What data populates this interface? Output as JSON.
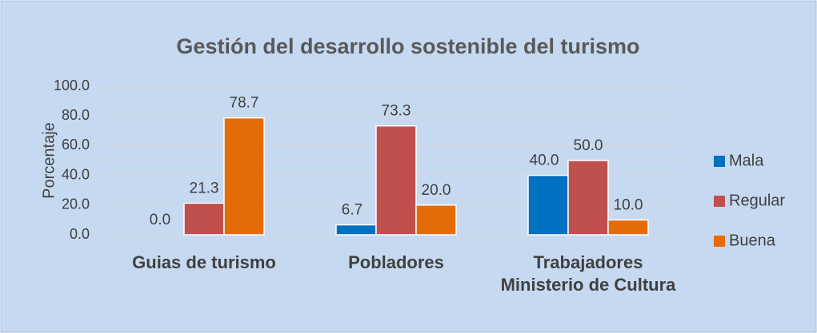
{
  "chart_data": {
    "type": "bar",
    "title": "Gestión del desarrollo sostenible del turismo",
    "y_label": "Porcentaje",
    "categories": [
      "Guias de turismo",
      "Pobladores",
      "Trabajadores Ministerio de Cultura"
    ],
    "series": [
      {
        "name": "Mala",
        "color": "#0070c0",
        "values": [
          0,
          6.7,
          40
        ],
        "value_labels": [
          "0.0",
          "6.7",
          "40.0"
        ]
      },
      {
        "name": "Regular",
        "color": "#c0504d",
        "values": [
          21.3,
          73.3,
          50
        ],
        "value_labels": [
          "21.3",
          "73.3",
          "50.0"
        ]
      },
      {
        "name": "Buena",
        "color": "#e36c09",
        "values": [
          78.7,
          20,
          10
        ],
        "value_labels": [
          "78.7",
          "20.0",
          "10.0"
        ]
      }
    ],
    "ylim": [
      0,
      100
    ],
    "yticks": [
      {
        "value": 0,
        "label": "0.0"
      },
      {
        "value": 20,
        "label": "20.0"
      },
      {
        "value": 40,
        "label": "40.0"
      },
      {
        "value": 60,
        "label": "60.0"
      },
      {
        "value": 80,
        "label": "80.0"
      },
      {
        "value": 100,
        "label": "100.0"
      }
    ],
    "grid": true,
    "legend": "right"
  }
}
